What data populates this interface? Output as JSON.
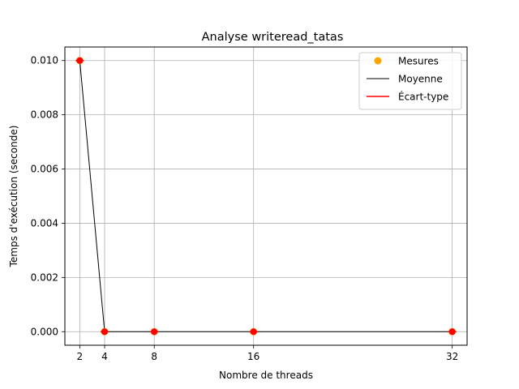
{
  "chart_data": {
    "type": "line",
    "title": "Analyse writeread_tatas",
    "xlabel": "Nombre de threads",
    "ylabel": "Temps d'exécution (seconde)",
    "x": [
      2,
      4,
      8,
      16,
      32
    ],
    "xticks": [
      2,
      4,
      8,
      16,
      32
    ],
    "xticklabels": [
      "2",
      "4",
      "8",
      "16",
      "32"
    ],
    "yticks": [
      0.0,
      0.002,
      0.004,
      0.006,
      0.008,
      0.01
    ],
    "yticklabels": [
      "0.000",
      "0.002",
      "0.004",
      "0.006",
      "0.008",
      "0.010"
    ],
    "xlim": [
      0.8,
      33.2
    ],
    "ylim": [
      -0.0005,
      0.0105
    ],
    "grid": true,
    "legend_position": "top-right",
    "series": [
      {
        "name": "Mesures",
        "kind": "scatter",
        "color": "#ffa500",
        "values": [
          0.01,
          0.0,
          0.0,
          0.0,
          0.0
        ]
      },
      {
        "name": "Moyenne",
        "kind": "line",
        "color": "#000000",
        "values": [
          0.01,
          0.0,
          0.0,
          0.0,
          0.0
        ]
      },
      {
        "name": "Écart-type",
        "kind": "errorbar",
        "color": "#ff0000",
        "values": [
          0.0,
          0.0,
          0.0,
          0.0,
          0.0
        ]
      }
    ]
  }
}
